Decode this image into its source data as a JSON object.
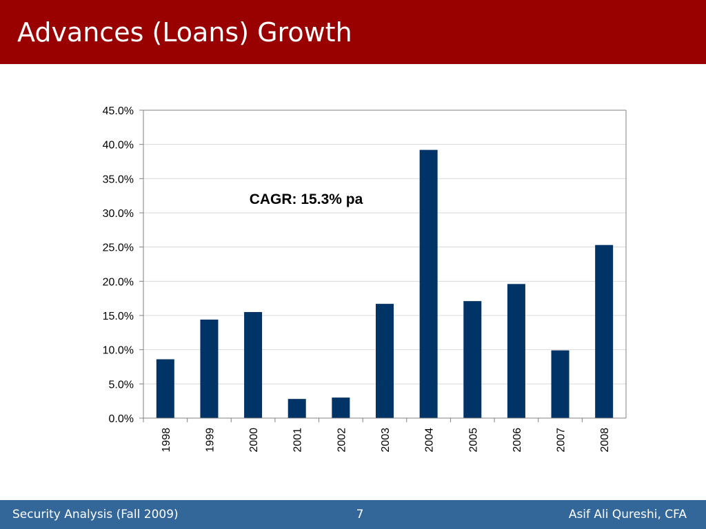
{
  "slide": {
    "title": "Advances (Loans) Growth",
    "footer_left": "Security Analysis (Fall 2009)",
    "page_number": "7",
    "footer_right": "Asif Ali Qureshi, CFA"
  },
  "colors": {
    "header_band": "#990000",
    "footer_band": "#336699",
    "bar_fill": "#003366",
    "gridline": "#d9d9d9",
    "axis": "#808080"
  },
  "chart_data": {
    "type": "bar",
    "title": "",
    "xlabel": "",
    "ylabel": "",
    "categories": [
      "1998",
      "1999",
      "2000",
      "2001",
      "2002",
      "2003",
      "2004",
      "2005",
      "2006",
      "2007",
      "2008"
    ],
    "values": [
      8.6,
      14.4,
      15.5,
      2.8,
      3.0,
      16.7,
      39.2,
      17.1,
      19.6,
      9.9,
      25.3
    ],
    "ylim": [
      0,
      45
    ],
    "y_ticks": [
      "0.0%",
      "5.0%",
      "10.0%",
      "15.0%",
      "20.0%",
      "25.0%",
      "30.0%",
      "35.0%",
      "40.0%",
      "45.0%"
    ],
    "grid": true,
    "legend": "none",
    "annotation": "CAGR: 15.3% pa"
  }
}
